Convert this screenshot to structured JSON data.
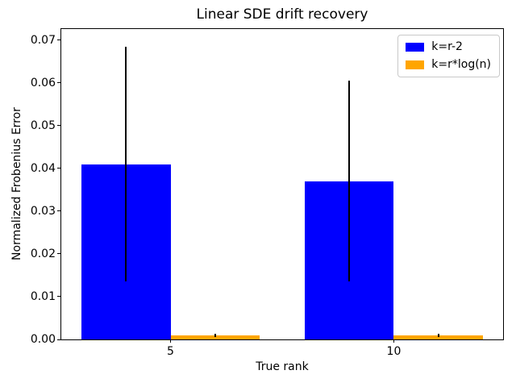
{
  "figure": {
    "background": "#ffffff",
    "axes_edge_color": "#000000"
  },
  "chart_data": {
    "type": "bar",
    "title": "Linear SDE drift recovery",
    "xlabel": "True rank",
    "ylabel": "Normalized Frobenius Error",
    "categories": [
      "5",
      "10"
    ],
    "series": [
      {
        "name": "k=r-2",
        "color": "#0000ff",
        "values": [
          0.041,
          0.037
        ],
        "yerr": [
          0.0275,
          0.0235
        ]
      },
      {
        "name": "k=r*log(n)",
        "color": "#ffa500",
        "values": [
          0.0009,
          0.0009
        ],
        "yerr": [
          0.0004,
          0.0004
        ]
      }
    ],
    "error_bar_color": "#000000",
    "ylim": [
      0,
      0.0726
    ],
    "yticks": [
      0.0,
      0.01,
      0.02,
      0.03,
      0.04,
      0.05,
      0.06,
      0.07
    ],
    "ytick_labels": [
      "0.00",
      "0.01",
      "0.02",
      "0.03",
      "0.04",
      "0.05",
      "0.06",
      "0.07"
    ],
    "grid": false,
    "legend_position": "upper right"
  }
}
